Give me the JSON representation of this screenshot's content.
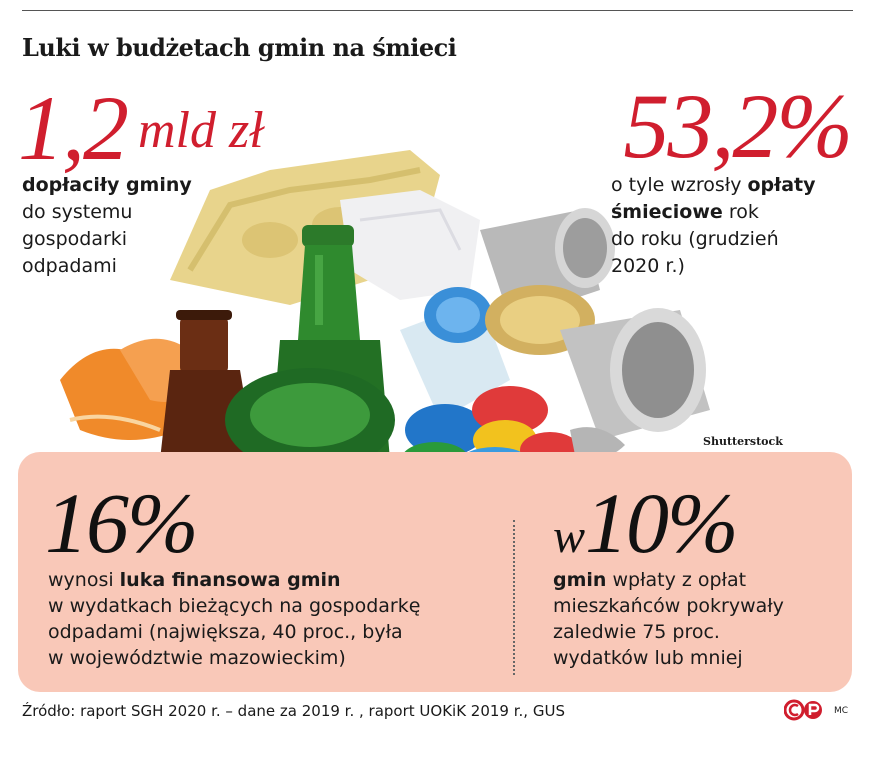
{
  "title": "Luki w budżetach gmin na śmieci",
  "stat1": {
    "value": "1,2",
    "unit": "mld zł",
    "desc_bold": "dopłaciły gminy",
    "desc_lines": [
      "do systemu",
      "gospodarki",
      "odpadami"
    ]
  },
  "stat2": {
    "value": "53,2%",
    "desc_pre": "o tyle wzrosły ",
    "desc_bold_1": "opłaty",
    "desc_bold_2": "śmieciowe",
    "desc_post_1": " rok",
    "desc_lines": [
      "do roku (grudzień",
      "2020 r.)"
    ]
  },
  "stat3": {
    "value": "16%",
    "desc_pre": "wynosi ",
    "desc_bold": "luka finansowa gmin",
    "desc_lines": [
      "w wydatkach bieżących na gospodarkę",
      "odpadami (największa, 40 proc., była",
      "w województwie mazowieckim)"
    ]
  },
  "stat4": {
    "prefix": "w",
    "value": "10%",
    "desc_bold": "gmin",
    "desc_post": " wpłaty z opłat",
    "desc_lines": [
      "mieszkańców pokrywały",
      "zaledwie 75 proc.",
      "wydatków lub mniej"
    ]
  },
  "photo_credit": "Shutterstock",
  "source": "Źródło: raport SGH 2020 r. – dane za 2019 r. , raport UOKiK 2019 r., GUS",
  "logo_text": "CP",
  "author": "MC",
  "colors": {
    "red": "#d01e2e",
    "panel": "#f9c8b8"
  }
}
